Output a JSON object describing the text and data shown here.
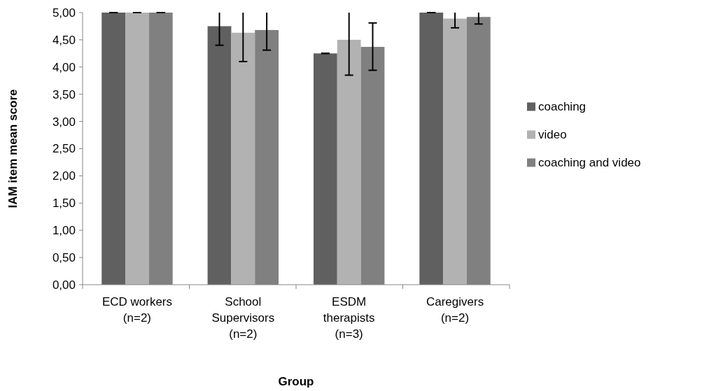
{
  "chart_data": {
    "type": "bar",
    "xlabel": "Group",
    "ylabel": "IAM item mean score",
    "categories": [
      "ECD workers (n=2)",
      "School Supervisors (n=2)",
      "ESDM therapists (n=3)",
      "Caregivers (n=2)"
    ],
    "series": [
      {
        "name": "coaching",
        "color": "#606060",
        "values": [
          5.0,
          4.75,
          4.25,
          5.0
        ],
        "errors": [
          [
            5.0,
            5.0
          ],
          [
            4.4,
            5.0
          ],
          [
            4.25,
            4.25
          ],
          [
            5.0,
            5.0
          ]
        ]
      },
      {
        "name": "video",
        "color": "#b2b2b2",
        "values": [
          5.0,
          4.63,
          4.5,
          4.89
        ],
        "errors": [
          [
            5.0,
            5.0
          ],
          [
            4.1,
            5.0
          ],
          [
            3.85,
            5.0
          ],
          [
            4.72,
            5.0
          ]
        ]
      },
      {
        "name": "coaching and video",
        "color": "#808080",
        "values": [
          5.0,
          4.68,
          4.37,
          4.92
        ],
        "errors": [
          [
            5.0,
            5.0
          ],
          [
            4.31,
            5.0
          ],
          [
            3.94,
            4.81
          ],
          [
            4.79,
            5.0
          ]
        ]
      }
    ],
    "ylim": [
      0,
      5
    ],
    "yticks": [
      {
        "value": 0,
        "label": "0,00"
      },
      {
        "value": 0.5,
        "label": "0,50"
      },
      {
        "value": 1,
        "label": "1,00"
      },
      {
        "value": 1.5,
        "label": "1,50"
      },
      {
        "value": 2,
        "label": "2,00"
      },
      {
        "value": 2.5,
        "label": "2,50"
      },
      {
        "value": 3,
        "label": "3,00"
      },
      {
        "value": 3.5,
        "label": "3,50"
      },
      {
        "value": 4,
        "label": "4,00"
      },
      {
        "value": 4.5,
        "label": "4,50"
      },
      {
        "value": 5,
        "label": "5,00"
      }
    ],
    "grid": false,
    "legend": "right"
  }
}
